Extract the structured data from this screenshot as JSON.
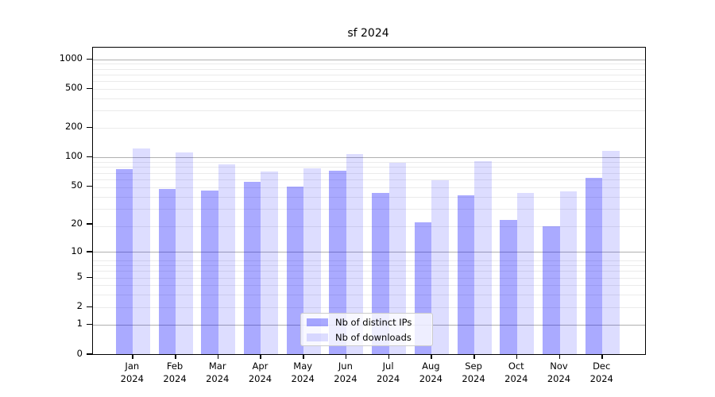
{
  "title": "sf 2024",
  "chart_data": {
    "type": "bar",
    "title": "sf 2024",
    "xlabel": "",
    "ylabel": "",
    "categories": [
      "Jan\n2024",
      "Feb\n2024",
      "Mar\n2024",
      "Apr\n2024",
      "May\n2024",
      "Jun\n2024",
      "Jul\n2024",
      "Aug\n2024",
      "Sep\n2024",
      "Oct\n2024",
      "Nov\n2024",
      "Dec\n2024"
    ],
    "series": [
      {
        "name": "Nb of distinct IPs",
        "color": "#0000FF55",
        "values": [
          75,
          47,
          45,
          56,
          50,
          72,
          43,
          21,
          40,
          22,
          19,
          61
        ]
      },
      {
        "name": "Nb of downloads",
        "color": "#0000FF22",
        "values": [
          123,
          112,
          85,
          71,
          77,
          107,
          88,
          58,
          91,
          43,
          44,
          116
        ]
      }
    ],
    "yscale": "log10(1+y)",
    "ylim": [
      0,
      1300
    ],
    "yticks": [
      1000,
      500,
      200,
      100,
      50,
      20,
      10,
      5,
      2,
      1,
      0
    ],
    "grid": {
      "orientation": "horizontal",
      "major_at": [
        1,
        10,
        100,
        1000
      ],
      "minor": "decades of (1+y)"
    },
    "legend_position": "lower center"
  },
  "colors": {
    "bar_dark": "#0000FF55",
    "bar_light": "#0000FF22",
    "grid_major": "#b0b0b0",
    "grid_minor": "#ebebeb",
    "spine": "#000000",
    "legend_border": "#cccccc"
  }
}
